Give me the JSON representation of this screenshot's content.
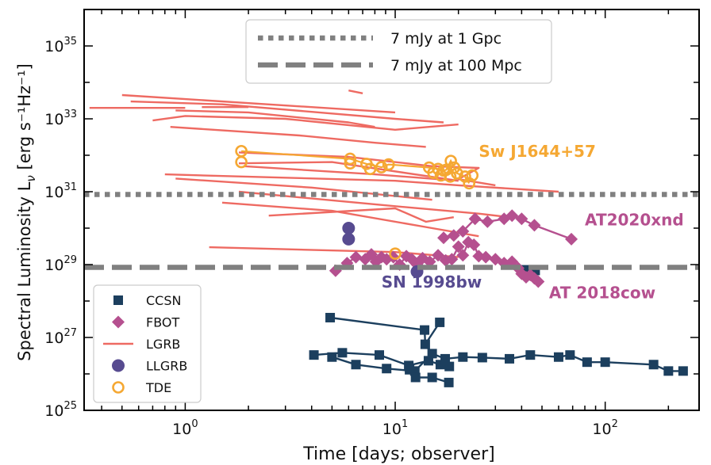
{
  "chart_data": {
    "type": "line",
    "title": "",
    "xlabel": "Time [days; observer]",
    "ylabel_prefix": "Spectral Luminosity L",
    "ylabel_sub": "ν",
    "ylabel_suffix": " [erg s⁻¹Hz⁻¹]",
    "xscale": "log",
    "yscale": "log",
    "xlim": [
      0.33,
      280
    ],
    "ylim": [
      1e+25,
      1e+36
    ],
    "grid": false,
    "x_ticks": [
      {
        "value": 1,
        "base": "10",
        "exp": "0"
      },
      {
        "value": 10,
        "base": "10",
        "exp": "1"
      },
      {
        "value": 100,
        "base": "10",
        "exp": "2"
      }
    ],
    "y_ticks": [
      {
        "value": 1e+25,
        "base": "10",
        "exp": "25"
      },
      {
        "value": 1e+27,
        "base": "10",
        "exp": "27"
      },
      {
        "value": 1e+29,
        "base": "10",
        "exp": "29"
      },
      {
        "value": 1e+31,
        "base": "10",
        "exp": "31"
      },
      {
        "value": 1e+33,
        "base": "10",
        "exp": "33"
      },
      {
        "value": 1e+35,
        "base": "10",
        "exp": "35"
      }
    ],
    "reference_lines": [
      {
        "label": "7 mJy at 1 Gpc",
        "y": 8.4e+30,
        "style": "dotted",
        "color": "#808080"
      },
      {
        "label": "7 mJy at 100 Mpc",
        "y": 8.4e+28,
        "style": "dashed",
        "color": "#808080"
      }
    ],
    "legend": {
      "placement": "lower-left",
      "entries": [
        {
          "label": "CCSN",
          "marker": "square",
          "color": "#1c3f5e"
        },
        {
          "label": "FBOT",
          "marker": "diamond",
          "color": "#b5508f"
        },
        {
          "label": "LGRB",
          "marker": "line",
          "color": "#ee6a62"
        },
        {
          "label": "LLGRB",
          "marker": "circle",
          "color": "#574b90"
        },
        {
          "label": "TDE",
          "marker": "open-circle",
          "color": "#f5a833"
        }
      ]
    },
    "annotations": [
      {
        "text": "Sw J1644+57",
        "x": 25,
        "y": 1.3e+32,
        "color": "#f5a833"
      },
      {
        "text": "AT2020xnd",
        "x": 80,
        "y": 1.7e+30,
        "color": "#b5508f"
      },
      {
        "text": "SN 1998bw",
        "x": 8.6,
        "y": 3.3e+28,
        "color": "#574b90"
      },
      {
        "text": "AT 2018cow",
        "x": 54,
        "y": 1.7e+28,
        "color": "#b5508f"
      }
    ],
    "series": [
      {
        "group": "LGRB",
        "color": "#ee6a62",
        "curves": [
          [
            [
              0.35,
              2e+33
            ],
            [
              1.0,
              2e+33
            ]
          ],
          [
            [
              1.2,
              2.1e+33
            ],
            [
              2.0,
              2.1e+33
            ]
          ],
          [
            [
              0.5,
              4.5e+33
            ],
            [
              10.0,
              1.5e+33
            ]
          ],
          [
            [
              0.55,
              3e+33
            ],
            [
              1.5,
              2.5e+33
            ],
            [
              10.0,
              1e+33
            ],
            [
              17.0,
              8e+32
            ]
          ],
          [
            [
              0.7,
              9e+32
            ],
            [
              1.0,
              1.2e+33
            ],
            [
              3.0,
              1e+33
            ],
            [
              10.0,
              5e+32
            ],
            [
              20.0,
              7e+32
            ]
          ],
          [
            [
              0.9,
              1.7e+33
            ],
            [
              2.0,
              1.5e+33
            ],
            [
              6.0,
              8e+32
            ],
            [
              8.0,
              6e+32
            ]
          ],
          [
            [
              0.85,
              6e+32
            ],
            [
              3.5,
              3.5e+32
            ],
            [
              8.0,
              2.2e+32
            ],
            [
              14.0,
              1.7e+32
            ]
          ],
          [
            [
              6.0,
              6e+33
            ],
            [
              7.0,
              5e+33
            ]
          ],
          [
            [
              1.8,
              6e+31
            ],
            [
              5.0,
              6.5e+31
            ],
            [
              20.0,
              2e+31
            ]
          ],
          [
            [
              1.8,
              1.2e+32
            ],
            [
              6.0,
              9e+31
            ],
            [
              15.0,
              5e+31
            ],
            [
              25.0,
              4.5e+31
            ],
            [
              20.0,
              2.2e+31
            ],
            [
              30.0,
              1.5e+31
            ]
          ],
          [
            [
              1.9,
              5e+31
            ],
            [
              8.0,
              3e+31
            ],
            [
              20.0,
              2e+31
            ]
          ],
          [
            [
              0.9,
              2.3e+31
            ],
            [
              4.0,
              1.3e+31
            ],
            [
              15.0,
              6e+30
            ]
          ],
          [
            [
              0.8,
              3e+31
            ],
            [
              10.0,
              2e+31
            ],
            [
              20.0,
              1.5e+31
            ],
            [
              60.0,
              1e+31
            ]
          ],
          [
            [
              1.8,
              1e+31
            ],
            [
              10.0,
              4e+30
            ],
            [
              25.0,
              2.5e+30
            ],
            [
              35.0,
              2e+30
            ]
          ],
          [
            [
              2.5,
              2.2e+30
            ],
            [
              10.0,
              3.5e+30
            ],
            [
              14.0,
              1.5e+30
            ],
            [
              19.0,
              2e+30
            ]
          ],
          [
            [
              1.5,
              5e+30
            ],
            [
              5.0,
              3e+30
            ],
            [
              15.0,
              1e+30
            ],
            [
              25.0,
              6e+29
            ]
          ],
          [
            [
              1.3,
              3e+29
            ],
            [
              10.0,
              2.2e+29
            ],
            [
              20.0,
              1.6e+29
            ]
          ]
        ]
      },
      {
        "group": "TDE",
        "name": "Sw J1644+57",
        "color": "#f5a833",
        "points": [
          [
            1.85,
            1.3e+32
          ],
          [
            1.85,
            6.5e+31
          ],
          [
            6.1,
            8e+31
          ],
          [
            6.1,
            6e+31
          ],
          [
            7.3,
            5.8e+31
          ],
          [
            7.6,
            4.2e+31
          ],
          [
            8.6,
            4.7e+31
          ],
          [
            9.3,
            5.6e+31
          ],
          [
            14.5,
            4.6e+31
          ],
          [
            15.2,
            3.3e+31
          ],
          [
            16.0,
            4.2e+31
          ],
          [
            16.5,
            2.8e+31
          ],
          [
            17.0,
            3.8e+31
          ],
          [
            17.5,
            4e+31
          ],
          [
            18.3,
            2.6e+31
          ],
          [
            18.4,
            7e+31
          ],
          [
            19.1,
            4.6e+31
          ],
          [
            19.7,
            3.2e+31
          ],
          [
            21.5,
            2.6e+31
          ],
          [
            22.5,
            1.7e+31
          ],
          [
            23.3,
            2.8e+31
          ],
          [
            10.0,
            2e+29
          ]
        ]
      },
      {
        "group": "FBOT",
        "name": "AT 2018cow",
        "color": "#b5508f",
        "points": [
          [
            5.2,
            6.8e+28
          ],
          [
            5.9,
            1.1e+29
          ],
          [
            6.5,
            1.6e+29
          ],
          [
            7.2,
            1.4e+29
          ],
          [
            7.7,
            1.9e+29
          ],
          [
            8.1,
            1.2e+29
          ],
          [
            8.6,
            1.6e+29
          ],
          [
            9.1,
            1.4e+29
          ],
          [
            9.8,
            1.6e+29
          ],
          [
            10.5,
            1e+29
          ],
          [
            11.3,
            1.7e+29
          ],
          [
            12.0,
            1.4e+29
          ],
          [
            12.7,
            1e+29
          ],
          [
            13.5,
            1.5e+29
          ],
          [
            14.6,
            1.2e+29
          ],
          [
            16.0,
            1.8e+29
          ],
          [
            17.4,
            1.3e+29
          ],
          [
            18.6,
            1.4e+29
          ],
          [
            20.0,
            3.1e+29
          ],
          [
            21.0,
            1.8e+29
          ],
          [
            22.3,
            4.1e+29
          ],
          [
            23.7,
            3.5e+29
          ],
          [
            25.0,
            1.7e+29
          ],
          [
            27.0,
            1.6e+29
          ],
          [
            30.0,
            1.4e+29
          ],
          [
            33.0,
            1.1e+29
          ],
          [
            36.0,
            1.2e+29
          ],
          [
            38.5,
            8e+28
          ],
          [
            40.0,
            5.6e+28
          ],
          [
            42.0,
            4.5e+28
          ],
          [
            44.0,
            5.2e+28
          ],
          [
            46.0,
            4.2e+28
          ],
          [
            48.0,
            3.4e+28
          ]
        ]
      },
      {
        "group": "FBOT",
        "name": "AT2020xnd",
        "color": "#b5508f",
        "points": [
          [
            17.0,
            5.4e+29
          ],
          [
            19.0,
            6.3e+29
          ],
          [
            21.0,
            8.2e+29
          ],
          [
            24.0,
            1.8e+30
          ],
          [
            27.5,
            1.5e+30
          ],
          [
            33.0,
            1.8e+30
          ],
          [
            36.0,
            2.2e+30
          ],
          [
            40.0,
            1.8e+30
          ],
          [
            46.0,
            1.2e+30
          ],
          [
            69.0,
            5e+29
          ]
        ]
      },
      {
        "group": "LLGRB",
        "name": "SN 1998bw",
        "color": "#574b90",
        "points": [
          [
            6.0,
            1e+30
          ],
          [
            6.0,
            5e+29
          ],
          [
            12.7,
            6.4e+28
          ]
        ]
      },
      {
        "group": "CCSN",
        "color": "#1c3f5e",
        "curves": [
          [
            [
              4.9,
              3.5e+27
            ],
            [
              13.8,
              1.6e+27
            ],
            [
              13.9,
              6.5e+26
            ],
            [
              16.3,
              2.6e+27
            ]
          ],
          [
            [
              4.1,
              3.3e+26
            ],
            [
              5.6,
              3.8e+26
            ],
            [
              8.4,
              3.3e+26
            ],
            [
              11.6,
              1.7e+26
            ],
            [
              14.4,
              2.3e+26
            ],
            [
              16.4,
              1.8e+26
            ],
            [
              18.1,
              1.6e+26
            ]
          ],
          [
            [
              5.0,
              2.9e+26
            ],
            [
              6.5,
              1.8e+26
            ],
            [
              9.1,
              1.4e+26
            ],
            [
              12.4,
              1.2e+26
            ],
            [
              15.0,
              3.6e+26
            ],
            [
              17.3,
              2.6e+26
            ],
            [
              21.0,
              2.9e+26
            ],
            [
              26.0,
              2.8e+26
            ],
            [
              35.0,
              2.6e+26
            ],
            [
              44.0,
              3.3e+26
            ],
            [
              60.0,
              2.9e+26
            ],
            [
              68.0,
              3.3e+26
            ],
            [
              82.0,
              2.1e+26
            ],
            [
              100.0,
              2.1e+26
            ],
            [
              170.0,
              1.8e+26
            ],
            [
              200.0,
              1.2e+26
            ],
            [
              235.0,
              1.2e+26
            ]
          ],
          [
            [
              11.7,
              1.3e+26
            ],
            [
              12.5,
              8e+25
            ],
            [
              15.0,
              8e+25
            ],
            [
              18.0,
              5.8e+25
            ]
          ],
          [
            [
              41.6,
              7.2e+28
            ],
            [
              46.4,
              6.9e+28
            ]
          ]
        ]
      }
    ]
  }
}
